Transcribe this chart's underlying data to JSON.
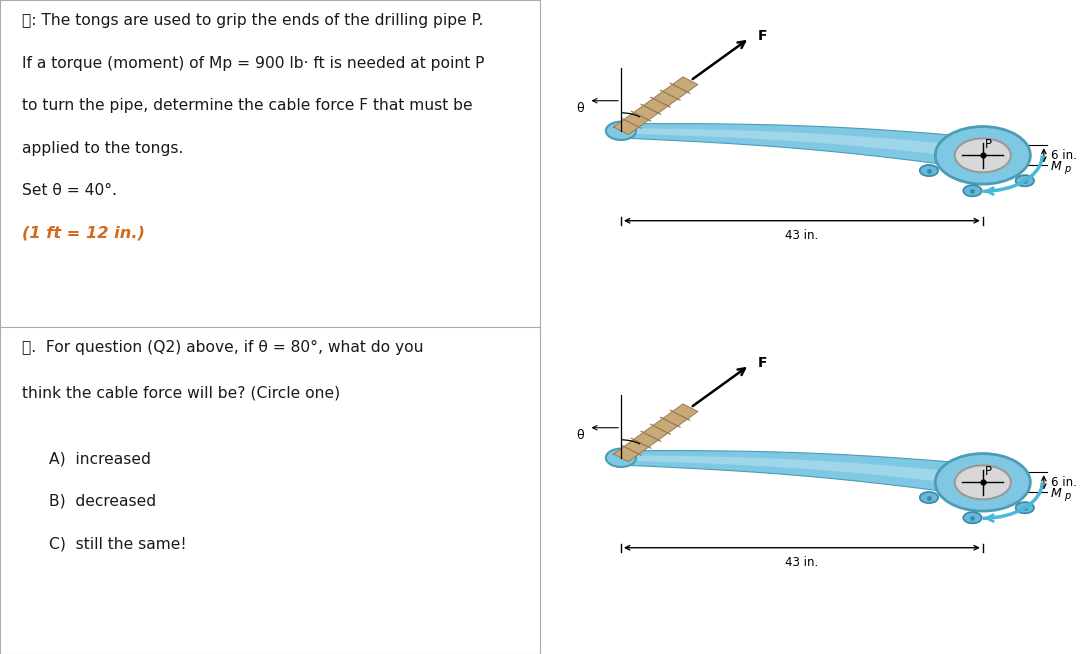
{
  "bg_color": "#ffffff",
  "text_color": "#1a1a1a",
  "orange_color": "#d4691e",
  "tong_fill": "#7ec8e3",
  "tong_edge": "#4a9db5",
  "tong_light": "#b8e0f0",
  "tong_dark": "#3a8aaa",
  "cable_fill": "#c8aa78",
  "cable_edge": "#9a7a50",
  "bolt_fill": "#6ab8d8",
  "bolt_edge": "#3a8aaa",
  "pipe_fill": "#d8d8d8",
  "pipe_edge": "#999999",
  "mp_color": "#4ab8d8",
  "line1": "⮤: The tongs are used to grip the ends of the drilling pipe P.",
  "line2": "If a torque (moment) of Mp = 900 lb· ft is needed at point P",
  "line3": "to turn the pipe, determine the cable force F that must be",
  "line4": "applied to the tongs.",
  "line5": "Set θ = 40°.",
  "line6": "(1 ft = 12 in.)",
  "line7": "⮤.  For question (Q2) above, if θ = 80°, what do you",
  "line8": "think the cable force will be? (Circle one)",
  "ansA": "A)  increased",
  "ansB": "B)  decreased",
  "ansC": "C)  still the same!",
  "dim43": "43 in.",
  "dim6": "6 in.",
  "lP": "P",
  "lF": "F",
  "ltheta": "θ",
  "lMp": "M",
  "lMp_sub": "p"
}
